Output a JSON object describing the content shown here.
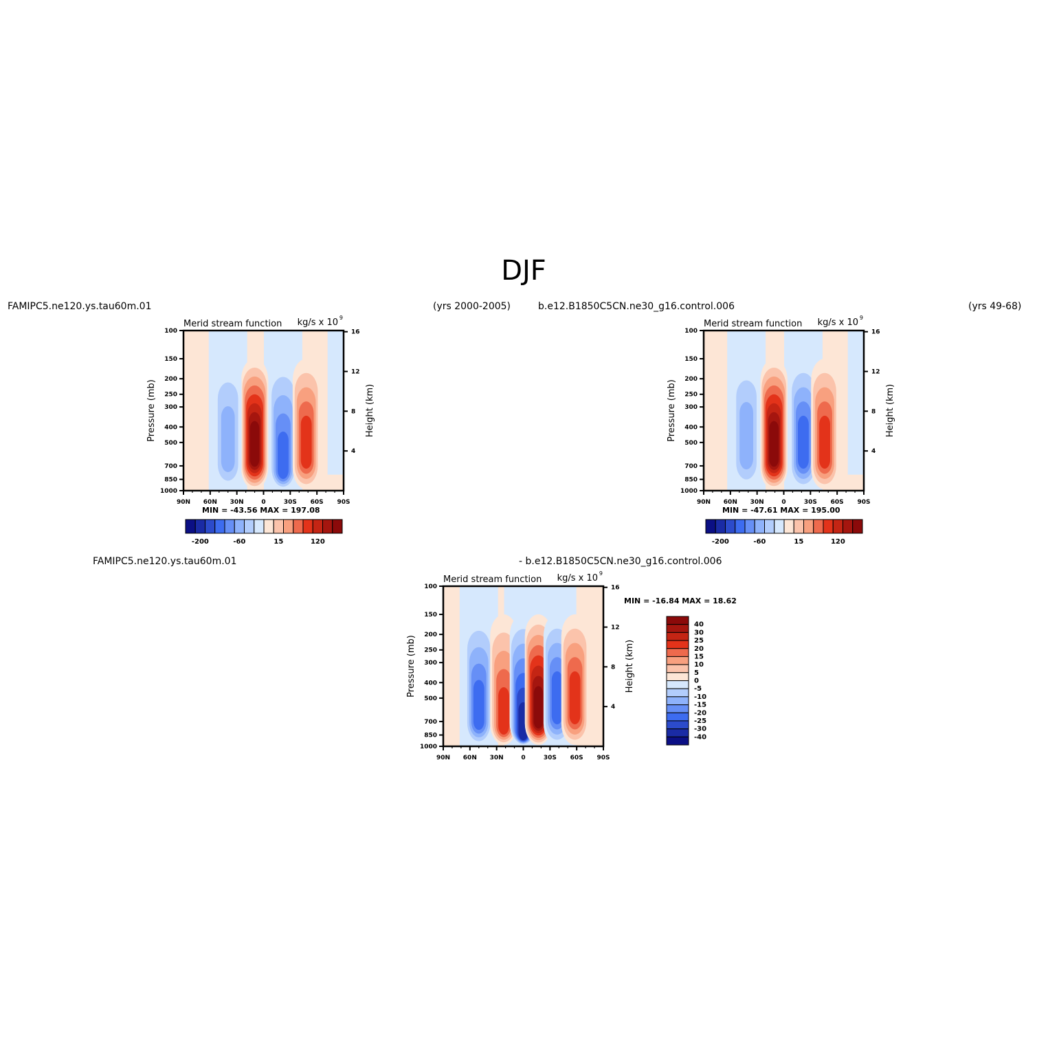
{
  "page": {
    "title": "DJF"
  },
  "colors": {
    "dark_red": "#8b0a0a",
    "red": "#e3331a",
    "salmon": "#f8a07f",
    "peach": "#fde6d6",
    "light_blue": "#d6e8fd",
    "mid_blue": "#8eb2fb",
    "blue": "#3d6cf0",
    "navy": "#0b0f85"
  },
  "panels": [
    {
      "case_name": "FAMIPC5.ne120.ys.tau60m.01",
      "years": "(yrs 2000-2005)",
      "variable": "Merid stream function",
      "units_base": "kg/s x 10",
      "units_exp": "9",
      "min_max": "MIN = -43.56   MAX = 197.08"
    },
    {
      "case_name": "b.e12.B1850C5CN.ne30_g16.control.006",
      "years": "(yrs 49-68)",
      "variable": "Merid stream function",
      "units_base": "kg/s x 10",
      "units_exp": "9",
      "min_max": "MIN = -47.61   MAX = 195.00"
    },
    {
      "case_name": "FAMIPC5.ne120.ys.tau60m.01",
      "years": "- b.e12.B1850C5CN.ne30_g16.control.006",
      "variable": "Merid stream function",
      "units_base": "kg/s x 10",
      "units_exp": "9",
      "min_max": "MIN = -16.84   MAX =   18.62"
    }
  ],
  "chart_data": [
    {
      "type": "heatmap",
      "title": "Merid stream function",
      "xlabel": "",
      "ylabel": "Pressure (mb)",
      "ylabel_right": "Height (km)",
      "x_ticks": [
        "90N",
        "60N",
        "30N",
        "0",
        "30S",
        "60S",
        "90S"
      ],
      "y_ticks": [
        100,
        150,
        200,
        250,
        300,
        400,
        500,
        700,
        850,
        1000
      ],
      "y_right_ticks": [
        4,
        8,
        12,
        16
      ],
      "ylim": [
        1000,
        100
      ],
      "y_scale": "log",
      "colorbar_ticks": [
        "-200",
        "-60",
        "15",
        "120"
      ],
      "colorbar_orientation": "horizontal",
      "min": -43.56,
      "max": 197.08,
      "features": [
        {
          "sign": "positive",
          "center_lat": 10,
          "peak_pressure": 500,
          "peak_value": 197.08
        },
        {
          "sign": "negative",
          "center_lat": 40,
          "peak_pressure": 500,
          "peak_value": -43.56
        },
        {
          "sign": "negative",
          "center_lat": -22,
          "peak_pressure": 700
        },
        {
          "sign": "positive",
          "center_lat": -48,
          "peak_pressure": 500
        }
      ]
    },
    {
      "type": "heatmap",
      "title": "Merid stream function",
      "xlabel": "",
      "ylabel": "Pressure (mb)",
      "ylabel_right": "Height (km)",
      "x_ticks": [
        "90N",
        "60N",
        "30N",
        "0",
        "30S",
        "60S",
        "90S"
      ],
      "y_ticks": [
        100,
        150,
        200,
        250,
        300,
        400,
        500,
        700,
        850,
        1000
      ],
      "y_right_ticks": [
        4,
        8,
        12,
        16
      ],
      "ylim": [
        1000,
        100
      ],
      "y_scale": "log",
      "colorbar_ticks": [
        "-200",
        "-60",
        "15",
        "120"
      ],
      "colorbar_orientation": "horizontal",
      "min": -47.61,
      "max": 195.0,
      "features": [
        {
          "sign": "positive",
          "center_lat": 11,
          "peak_pressure": 500,
          "peak_value": 195.0
        },
        {
          "sign": "negative",
          "center_lat": 42,
          "peak_pressure": 450,
          "peak_value": -47.61
        },
        {
          "sign": "negative",
          "center_lat": -22,
          "peak_pressure": 500
        },
        {
          "sign": "positive",
          "center_lat": -46,
          "peak_pressure": 500
        }
      ]
    },
    {
      "type": "heatmap",
      "title": "Merid stream function",
      "xlabel": "",
      "ylabel": "Pressure (mb)",
      "ylabel_right": "Height (km)",
      "x_ticks": [
        "90N",
        "60N",
        "30N",
        "0",
        "30S",
        "60S",
        "90S"
      ],
      "y_ticks": [
        100,
        150,
        200,
        250,
        300,
        400,
        500,
        700,
        850,
        1000
      ],
      "y_right_ticks": [
        4,
        8,
        12,
        16
      ],
      "ylim": [
        1000,
        100
      ],
      "y_scale": "log",
      "colorbar_ticks": [
        "40",
        "30",
        "25",
        "20",
        "15",
        "10",
        "5",
        "0",
        "-5",
        "-10",
        "-15",
        "-20",
        "-25",
        "-30",
        "-40"
      ],
      "colorbar_orientation": "vertical",
      "min": -16.84,
      "max": 18.62,
      "features": [
        {
          "sign": "negative",
          "center_lat": 50,
          "peak_pressure": 600
        },
        {
          "sign": "positive",
          "center_lat": 22,
          "peak_pressure": 700
        },
        {
          "sign": "negative",
          "center_lat": 0,
          "peak_pressure": 850,
          "peak_value": -16.84
        },
        {
          "sign": "positive",
          "center_lat": -17,
          "peak_pressure": 600,
          "peak_value": 18.62
        },
        {
          "sign": "negative",
          "center_lat": -38,
          "peak_pressure": 500
        },
        {
          "sign": "positive",
          "center_lat": -58,
          "peak_pressure": 500
        }
      ]
    }
  ]
}
